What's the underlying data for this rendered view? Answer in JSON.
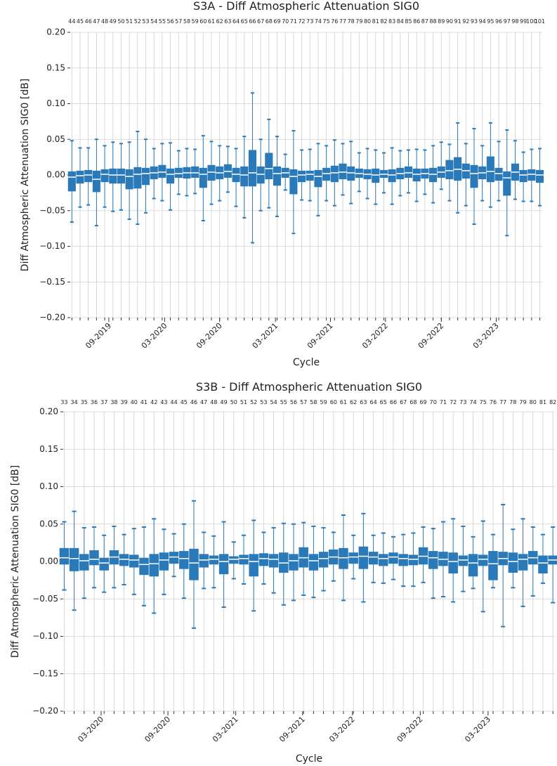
{
  "chart_data": [
    {
      "type": "box",
      "title": "S3A  - Diff Atmospheric Attenuation SIG0",
      "xlabel": "Cycle",
      "ylabel": "Diff Atmospheric Attenuation SIG0 [dB]",
      "color": "#2a7ab9",
      "grid": true,
      "x": [
        44,
        45,
        46,
        47,
        48,
        49,
        50,
        51,
        52,
        53,
        54,
        55,
        56,
        57,
        58,
        59,
        60,
        61,
        62,
        63,
        64,
        65,
        66,
        67,
        68,
        69,
        70,
        71,
        72,
        73,
        74,
        75,
        76,
        77,
        78,
        79,
        80,
        81,
        82,
        83,
        84,
        85,
        86,
        87,
        88,
        89,
        90,
        91,
        92,
        93,
        94,
        95,
        96,
        97,
        98,
        99,
        100,
        101
      ],
      "xlim": [
        43.8,
        101.3
      ],
      "xticks": [
        {
          "value": 48.5,
          "label": "09-2019"
        },
        {
          "value": 55.3,
          "label": "03-2020"
        },
        {
          "value": 62,
          "label": "09-2020"
        },
        {
          "value": 68.8,
          "label": "03-2021"
        },
        {
          "value": 75.5,
          "label": "09-2021"
        },
        {
          "value": 82.2,
          "label": "03-2022"
        },
        {
          "value": 89,
          "label": "09-2022"
        },
        {
          "value": 95.7,
          "label": "03-2023"
        }
      ],
      "ylim": [
        -0.2,
        0.2
      ],
      "yticks": [
        {
          "value": -0.2,
          "label": "−0.20"
        },
        {
          "value": -0.15,
          "label": "−0.15"
        },
        {
          "value": -0.1,
          "label": "−0.10"
        },
        {
          "value": -0.05,
          "label": "−0.05"
        },
        {
          "value": 0,
          "label": "0.00"
        },
        {
          "value": 0.05,
          "label": "0.05"
        },
        {
          "value": 0.1,
          "label": "0.10"
        },
        {
          "value": 0.15,
          "label": "0.15"
        },
        {
          "value": 0.2,
          "label": "0.20"
        }
      ],
      "whishi": [
        0.048,
        0.038,
        0.038,
        0.05,
        0.041,
        0.046,
        0.044,
        0.046,
        0.061,
        0.05,
        0.037,
        0.044,
        0.045,
        0.034,
        0.037,
        0.036,
        0.055,
        0.047,
        0.041,
        0.04,
        0.037,
        0.054,
        0.115,
        0.05,
        0.078,
        0.054,
        0.029,
        0.062,
        0.035,
        0.036,
        0.044,
        0.041,
        0.049,
        0.044,
        0.047,
        0.031,
        0.037,
        0.035,
        0.031,
        0.038,
        0.034,
        0.035,
        0.036,
        0.035,
        0.041,
        0.046,
        0.043,
        0.073,
        0.044,
        0.065,
        0.041,
        0.073,
        0.047,
        0.063,
        0.048,
        0.032,
        0.036,
        0.037
      ],
      "q3": [
        0.005,
        0.006,
        0.007,
        0.006,
        0.008,
        0.009,
        0.009,
        0.008,
        0.011,
        0.01,
        0.012,
        0.014,
        0.009,
        0.01,
        0.011,
        0.012,
        0.01,
        0.014,
        0.012,
        0.015,
        0.01,
        0.012,
        0.035,
        0.012,
        0.031,
        0.012,
        0.01,
        0.008,
        0.006,
        0.006,
        0.007,
        0.01,
        0.013,
        0.016,
        0.012,
        0.009,
        0.008,
        0.009,
        0.007,
        0.008,
        0.01,
        0.012,
        0.009,
        0.009,
        0.01,
        0.012,
        0.021,
        0.025,
        0.016,
        0.014,
        0.012,
        0.026,
        0.01,
        0.005,
        0.016,
        0.007,
        0.008,
        0.007
      ],
      "med": [
        -0.003,
        -0.001,
        0,
        -0.006,
        0.001,
        0,
        0,
        -0.002,
        0.001,
        0.002,
        0.003,
        0.004,
        0.001,
        0.002,
        0.003,
        0.003,
        0.001,
        0.004,
        0.003,
        0.005,
        0.001,
        0,
        0.003,
        0.001,
        0.009,
        0.002,
        0.003,
        -0.002,
        0,
        0.001,
        -0.002,
        0.002,
        0.003,
        0.004,
        0.003,
        0.002,
        0.001,
        0,
        0.001,
        0,
        0.002,
        0.003,
        0.001,
        0.002,
        0.001,
        0.004,
        0.006,
        0.008,
        0.006,
        0.002,
        0.003,
        0.005,
        0.002,
        -0.004,
        0.004,
        0,
        0.001,
        0
      ],
      "q1": [
        -0.023,
        -0.012,
        -0.01,
        -0.024,
        -0.01,
        -0.012,
        -0.012,
        -0.02,
        -0.019,
        -0.014,
        -0.006,
        -0.004,
        -0.012,
        -0.004,
        -0.005,
        -0.004,
        -0.018,
        -0.008,
        -0.006,
        -0.004,
        -0.01,
        -0.016,
        -0.016,
        -0.012,
        -0.006,
        -0.015,
        -0.004,
        -0.027,
        -0.01,
        -0.008,
        -0.017,
        -0.008,
        -0.01,
        -0.006,
        -0.008,
        -0.004,
        -0.006,
        -0.011,
        -0.004,
        -0.01,
        -0.006,
        -0.004,
        -0.009,
        -0.005,
        -0.01,
        -0.004,
        -0.006,
        -0.008,
        -0.005,
        -0.018,
        -0.006,
        -0.01,
        -0.008,
        -0.029,
        -0.008,
        -0.01,
        -0.008,
        -0.011
      ],
      "whislo": [
        -0.066,
        -0.045,
        -0.042,
        -0.071,
        -0.045,
        -0.051,
        -0.049,
        -0.062,
        -0.069,
        -0.053,
        -0.033,
        -0.036,
        -0.049,
        -0.027,
        -0.029,
        -0.026,
        -0.064,
        -0.041,
        -0.036,
        -0.024,
        -0.044,
        -0.06,
        -0.095,
        -0.05,
        -0.046,
        -0.058,
        -0.021,
        -0.082,
        -0.035,
        -0.036,
        -0.057,
        -0.036,
        -0.043,
        -0.028,
        -0.04,
        -0.023,
        -0.033,
        -0.041,
        -0.025,
        -0.041,
        -0.029,
        -0.025,
        -0.037,
        -0.027,
        -0.039,
        -0.02,
        -0.036,
        -0.053,
        -0.043,
        -0.069,
        -0.036,
        -0.045,
        -0.036,
        -0.085,
        -0.034,
        -0.037,
        -0.037,
        -0.043
      ]
    },
    {
      "type": "box",
      "title": "S3B  - Diff Atmospheric Attenuation SIG0",
      "xlabel": "Cycle",
      "ylabel": "Diff Atmospheric Attenuation SIG0 [dB]",
      "color": "#2a7ab9",
      "grid": true,
      "x": [
        33,
        34,
        35,
        36,
        37,
        38,
        39,
        40,
        41,
        42,
        43,
        44,
        45,
        46,
        47,
        48,
        49,
        50,
        51,
        52,
        53,
        54,
        55,
        56,
        57,
        58,
        59,
        60,
        61,
        62,
        63,
        64,
        65,
        66,
        67,
        68,
        69,
        70,
        71,
        72,
        73,
        74,
        75,
        76,
        77,
        78,
        79,
        80,
        81,
        82
      ],
      "xlim": [
        32.9,
        82.2
      ],
      "xticks": [
        {
          "value": 36.7,
          "label": "03-2020"
        },
        {
          "value": 43.4,
          "label": "09-2020"
        },
        {
          "value": 50.2,
          "label": "03-2021"
        },
        {
          "value": 56.9,
          "label": "09-2021"
        },
        {
          "value": 61.9,
          "label": "03-2022"
        },
        {
          "value": 68.7,
          "label": "09-2022"
        },
        {
          "value": 75.5,
          "label": "03-2023"
        }
      ],
      "ylim": [
        -0.2,
        0.2
      ],
      "yticks": [
        {
          "value": -0.2,
          "label": "−0.20"
        },
        {
          "value": -0.15,
          "label": "−0.15"
        },
        {
          "value": -0.1,
          "label": "−0.10"
        },
        {
          "value": -0.05,
          "label": "−0.05"
        },
        {
          "value": 0,
          "label": "0.00"
        },
        {
          "value": 0.05,
          "label": "0.05"
        },
        {
          "value": 0.1,
          "label": "0.10"
        },
        {
          "value": 0.15,
          "label": "0.15"
        },
        {
          "value": 0.2,
          "label": "0.20"
        }
      ],
      "whishi": [
        0.053,
        0.067,
        0.045,
        0.046,
        0.035,
        0.047,
        0.036,
        0.044,
        0.046,
        0.057,
        0.043,
        0.037,
        0.05,
        0.081,
        0.039,
        0.034,
        0.053,
        0.026,
        0.035,
        0.055,
        0.039,
        0.045,
        0.051,
        0.05,
        0.052,
        0.047,
        0.045,
        0.039,
        0.062,
        0.035,
        0.064,
        0.035,
        0.038,
        0.033,
        0.036,
        0.038,
        0.046,
        0.044,
        0.053,
        0.057,
        0.047,
        0.033,
        0.054,
        0.036,
        0.076,
        0.043,
        0.057,
        0.046,
        0.036,
        0.046
      ],
      "q3": [
        0.018,
        0.018,
        0.01,
        0.015,
        0.005,
        0.015,
        0.01,
        0.009,
        0.005,
        0.01,
        0.012,
        0.013,
        0.014,
        0.017,
        0.01,
        0.008,
        0.01,
        0.007,
        0.009,
        0.01,
        0.011,
        0.01,
        0.012,
        0.01,
        0.019,
        0.01,
        0.013,
        0.016,
        0.018,
        0.012,
        0.02,
        0.013,
        0.01,
        0.012,
        0.01,
        0.009,
        0.019,
        0.014,
        0.013,
        0.012,
        0.008,
        0.01,
        0.009,
        0.014,
        0.013,
        0.012,
        0.01,
        0.014,
        0.008,
        0.008
      ],
      "med": [
        0.005,
        0.004,
        0.001,
        0.003,
        -0.002,
        0.006,
        0.003,
        0.002,
        -0.004,
        -0.003,
        0.002,
        0.006,
        0.004,
        -0.002,
        0.002,
        0.003,
        0,
        0.003,
        0.004,
        0,
        0.004,
        0.003,
        -0.002,
        0.001,
        0.005,
        0.001,
        0.004,
        0.006,
        0.005,
        0.006,
        0.007,
        0.006,
        0.004,
        0.006,
        0.004,
        0.003,
        0.007,
        0.005,
        0.003,
        0,
        0.002,
        -0.002,
        0.003,
        -0.003,
        0.004,
        0,
        0.003,
        0.005,
        -0.002,
        0.002
      ],
      "q1": [
        -0.004,
        -0.013,
        -0.012,
        -0.005,
        -0.012,
        -0.004,
        -0.006,
        -0.008,
        -0.018,
        -0.02,
        -0.012,
        -0.003,
        -0.01,
        -0.025,
        -0.008,
        -0.004,
        -0.017,
        -0.003,
        -0.004,
        -0.02,
        -0.006,
        -0.008,
        -0.015,
        -0.012,
        -0.008,
        -0.012,
        -0.008,
        -0.004,
        -0.01,
        -0.003,
        -0.01,
        -0.004,
        -0.006,
        -0.003,
        -0.006,
        -0.005,
        -0.004,
        -0.01,
        -0.006,
        -0.016,
        -0.006,
        -0.02,
        -0.006,
        -0.025,
        -0.005,
        -0.015,
        -0.012,
        -0.004,
        -0.016,
        -0.004
      ],
      "whislo": [
        -0.038,
        -0.065,
        -0.049,
        -0.035,
        -0.041,
        -0.035,
        -0.031,
        -0.044,
        -0.059,
        -0.069,
        -0.044,
        -0.02,
        -0.049,
        -0.089,
        -0.036,
        -0.035,
        -0.061,
        -0.023,
        -0.03,
        -0.066,
        -0.03,
        -0.042,
        -0.058,
        -0.052,
        -0.045,
        -0.048,
        -0.039,
        -0.026,
        -0.052,
        -0.023,
        -0.054,
        -0.028,
        -0.029,
        -0.024,
        -0.033,
        -0.033,
        -0.028,
        -0.049,
        -0.047,
        -0.054,
        -0.04,
        -0.036,
        -0.067,
        -0.035,
        -0.087,
        -0.035,
        -0.06,
        -0.046,
        -0.029,
        -0.055
      ]
    }
  ]
}
